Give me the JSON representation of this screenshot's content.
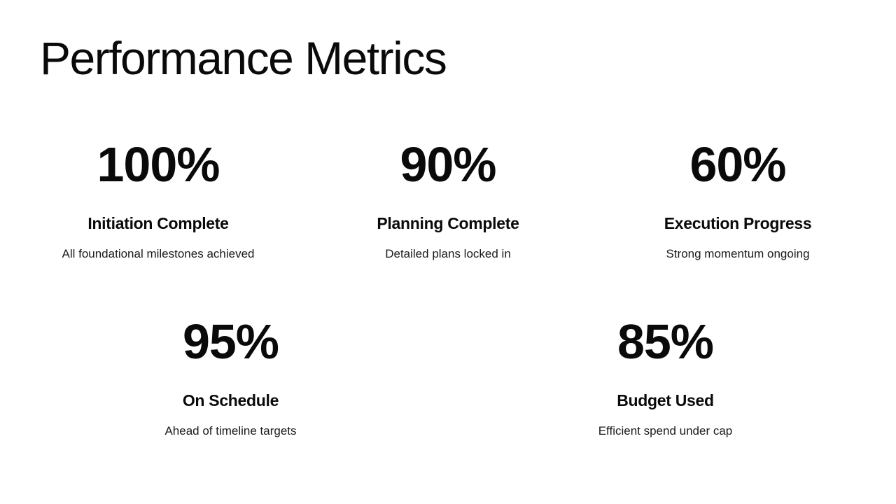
{
  "slide": {
    "title": "Performance Metrics",
    "colors": {
      "background": "#ffffff",
      "heading_text": "#0a0a0a",
      "body_text": "#1a1a1a"
    },
    "metrics_row1": [
      {
        "value": "100%",
        "label": "Initiation Complete",
        "description": "All foundational milestones achieved"
      },
      {
        "value": "90%",
        "label": "Planning Complete",
        "description": "Detailed plans locked in"
      },
      {
        "value": "60%",
        "label": "Execution Progress",
        "description": "Strong momentum ongoing"
      }
    ],
    "metrics_row2": [
      {
        "value": "95%",
        "label": "On Schedule",
        "description": "Ahead of timeline targets"
      },
      {
        "value": "85%",
        "label": "Budget Used",
        "description": "Efficient spend under cap"
      }
    ]
  }
}
